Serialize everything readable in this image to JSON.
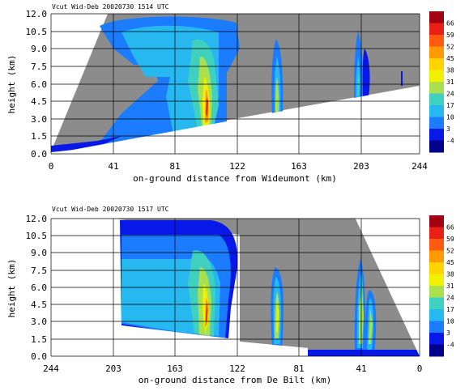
{
  "chart_data": [
    {
      "type": "heatmap",
      "title": "Vcut Wid-Deb  20020730 1514 UTC",
      "xlabel": "on-ground distance from Wideumont (km)",
      "ylabel": "height (km)",
      "xlim": [
        0,
        244
      ],
      "ylim": [
        0,
        12
      ],
      "x_ticks": [
        "0",
        "41",
        "81",
        "122",
        "163",
        "203",
        "244"
      ],
      "y_ticks": [
        "0.0",
        "1.5",
        "3.0",
        "4.5",
        "6.0",
        "7.5",
        "9.0",
        "10.5",
        "12.0"
      ],
      "grid": true,
      "colorbar": {
        "labels": [
          "66",
          "59",
          "52",
          "45",
          "38",
          "31",
          "24",
          "17",
          "10",
          "3",
          "-4"
        ],
        "colors": [
          "#a00010",
          "#e82018",
          "#ff5a10",
          "#ff9a00",
          "#ffd400",
          "#f0f000",
          "#a8e050",
          "#40d0c0",
          "#28b8f0",
          "#1c7cff",
          "#0818e8",
          "#00008a"
        ]
      }
    },
    {
      "type": "heatmap",
      "title": "Vcut Wid-Deb  20020730 1517 UTC",
      "xlabel": "on-ground distance from De Bilt (km)",
      "ylabel": "height (km)",
      "xlim": [
        244,
        0
      ],
      "ylim": [
        0,
        12
      ],
      "x_ticks": [
        "244",
        "203",
        "163",
        "122",
        "81",
        "41",
        "0"
      ],
      "y_ticks": [
        "0.0",
        "1.5",
        "3.0",
        "4.5",
        "6.0",
        "7.5",
        "9.0",
        "10.5",
        "12.0"
      ],
      "grid": true,
      "colorbar": {
        "labels": [
          "66",
          "59",
          "52",
          "45",
          "38",
          "31",
          "24",
          "17",
          "10",
          "3",
          "-4"
        ],
        "colors": [
          "#a00010",
          "#e82018",
          "#ff5a10",
          "#ff9a00",
          "#ffd400",
          "#f0f000",
          "#a8e050",
          "#40d0c0",
          "#28b8f0",
          "#1c7cff",
          "#0818e8",
          "#00008a"
        ]
      }
    }
  ]
}
